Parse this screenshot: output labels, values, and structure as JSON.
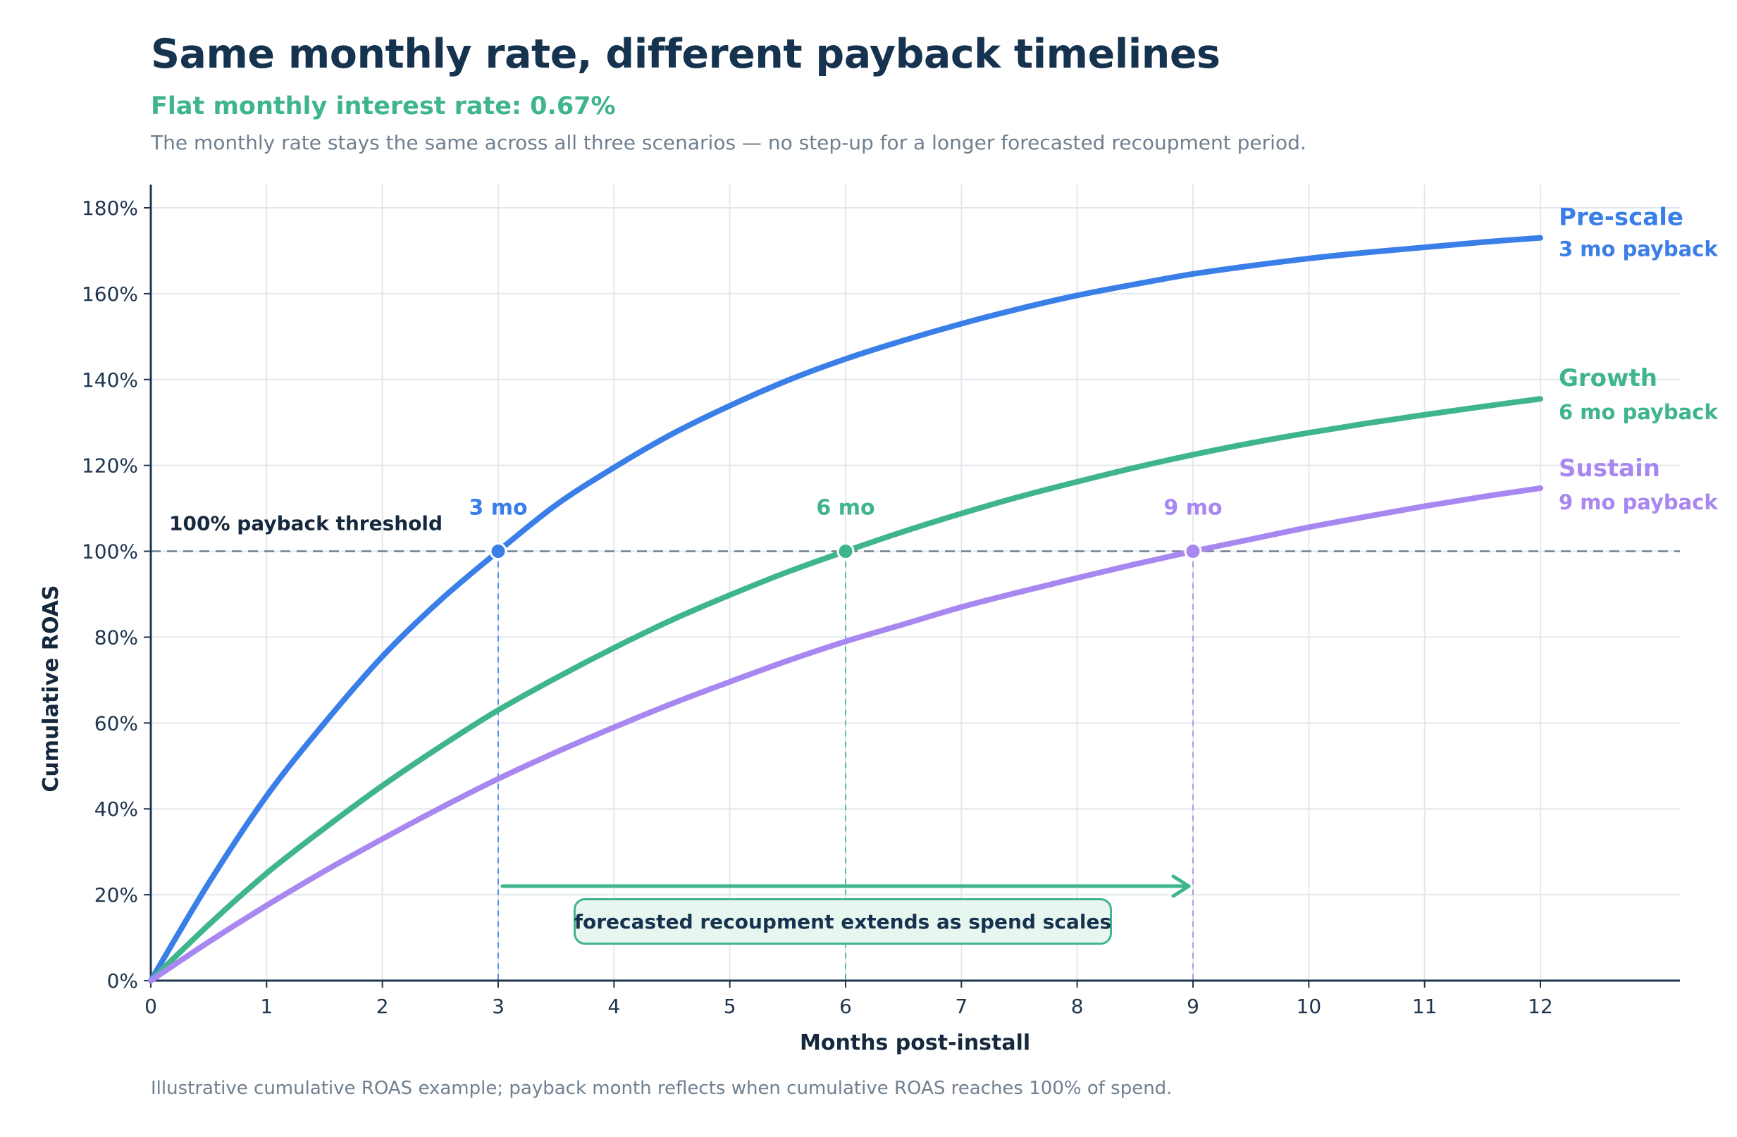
{
  "chart_data": {
    "type": "line",
    "title": "Same monthly rate, different payback timelines",
    "subtitle": "Flat monthly interest rate: 0.67%",
    "description": "The monthly rate stays the same across all three scenarios — no step-up for a longer forecasted recoupment period.",
    "footnote": "Illustrative cumulative ROAS example; payback month reflects when cumulative ROAS reaches 100% of spend.",
    "xlabel": "Months post-install",
    "ylabel": "Cumulative ROAS",
    "xlim": [
      0,
      13.2
    ],
    "ylim": [
      0,
      180
    ],
    "x_ticks": [
      "0",
      "1",
      "2",
      "3",
      "4",
      "5",
      "6",
      "7",
      "8",
      "9",
      "10",
      "11",
      "12"
    ],
    "y_ticks": [
      "0%",
      "20%",
      "40%",
      "60%",
      "80%",
      "100%",
      "120%",
      "140%",
      "160%",
      "180%"
    ],
    "grid": true,
    "threshold": {
      "value": 100,
      "label": "100% payback threshold"
    },
    "x": [
      0,
      0.5,
      1,
      1.5,
      2,
      2.5,
      3,
      3.5,
      4,
      4.5,
      5,
      5.5,
      6,
      6.5,
      7,
      7.5,
      8,
      8.5,
      9,
      9.5,
      10,
      10.5,
      11,
      11.5,
      12
    ],
    "series": [
      {
        "name": "Pre-scale",
        "payback_label": "3 mo payback",
        "marker_label": "3 mo",
        "payback_month": 3,
        "color": "#3a7ee8",
        "values": [
          0,
          22.7,
          43,
          60,
          75.5,
          88.6,
          100,
          110.8,
          119.5,
          127.3,
          133.9,
          139.8,
          144.8,
          149.1,
          153,
          156.5,
          159.6,
          162.2,
          164.6,
          166.5,
          168.2,
          169.6,
          170.8,
          172,
          173
        ]
      },
      {
        "name": "Growth",
        "payback_label": "6 mo payback",
        "marker_label": "6 mo",
        "payback_month": 6,
        "color": "#3fb58b",
        "values": [
          0,
          13,
          25,
          35.5,
          45.4,
          54.5,
          63,
          70.5,
          77.5,
          84,
          89.8,
          95.2,
          100,
          104.6,
          108.8,
          112.7,
          116.2,
          119.5,
          122.5,
          125.2,
          127.6,
          129.8,
          131.8,
          133.7,
          135.5
        ]
      },
      {
        "name": "Sustain",
        "payback_label": "9 mo payback",
        "marker_label": "9 mo",
        "payback_month": 9,
        "color": "#a888f0",
        "values": [
          0,
          9,
          17.5,
          25.5,
          33,
          40.2,
          47,
          53.2,
          59,
          64.5,
          69.6,
          74.5,
          79,
          83,
          87,
          90.5,
          93.8,
          97,
          100,
          102.8,
          105.6,
          108.1,
          110.5,
          112.7,
          114.7
        ]
      }
    ],
    "annotation": {
      "text": "forecasted recoupment extends as spend scales",
      "arrow_from_month": 3,
      "arrow_to_month": 9,
      "arrow_level": 22,
      "color": "#3fb58b"
    }
  }
}
